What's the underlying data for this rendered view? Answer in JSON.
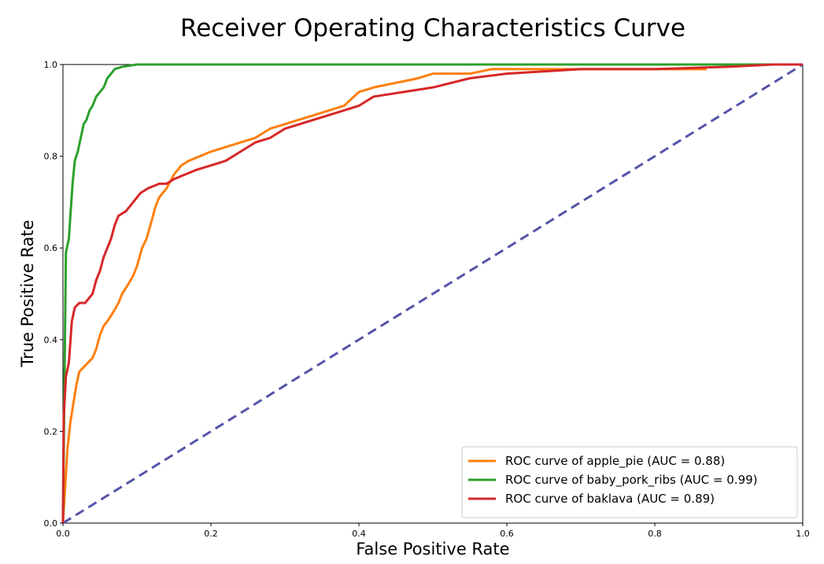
{
  "chart_data": {
    "type": "line",
    "title": "Receiver Operating Characteristics Curve",
    "xlabel": "False Positive Rate",
    "ylabel": "True Positive Rate",
    "xlim": [
      0.0,
      1.0
    ],
    "ylim": [
      0.0,
      1.0
    ],
    "xticks": [
      "0.0",
      "0.2",
      "0.4",
      "0.6",
      "0.8",
      "1.0"
    ],
    "yticks": [
      "0.0",
      "0.2",
      "0.4",
      "0.6",
      "0.8",
      "1.0"
    ],
    "grid": false,
    "legend_position": "lower-right",
    "series": [
      {
        "name": "ROC curve of apple_pie (AUC = 0.88)",
        "color": "#ff7f0e",
        "points": [
          [
            0,
            0
          ],
          [
            0.003,
            0.08
          ],
          [
            0.006,
            0.16
          ],
          [
            0.01,
            0.22
          ],
          [
            0.014,
            0.26
          ],
          [
            0.018,
            0.3
          ],
          [
            0.022,
            0.33
          ],
          [
            0.028,
            0.34
          ],
          [
            0.034,
            0.35
          ],
          [
            0.04,
            0.36
          ],
          [
            0.045,
            0.38
          ],
          [
            0.05,
            0.41
          ],
          [
            0.055,
            0.43
          ],
          [
            0.06,
            0.44
          ],
          [
            0.068,
            0.46
          ],
          [
            0.075,
            0.48
          ],
          [
            0.08,
            0.5
          ],
          [
            0.088,
            0.52
          ],
          [
            0.095,
            0.54
          ],
          [
            0.1,
            0.56
          ],
          [
            0.107,
            0.6
          ],
          [
            0.113,
            0.62
          ],
          [
            0.12,
            0.66
          ],
          [
            0.125,
            0.69
          ],
          [
            0.13,
            0.71
          ],
          [
            0.14,
            0.73
          ],
          [
            0.15,
            0.76
          ],
          [
            0.16,
            0.78
          ],
          [
            0.17,
            0.79
          ],
          [
            0.185,
            0.8
          ],
          [
            0.2,
            0.81
          ],
          [
            0.22,
            0.82
          ],
          [
            0.24,
            0.83
          ],
          [
            0.26,
            0.84
          ],
          [
            0.28,
            0.86
          ],
          [
            0.3,
            0.87
          ],
          [
            0.32,
            0.88
          ],
          [
            0.34,
            0.89
          ],
          [
            0.36,
            0.9
          ],
          [
            0.38,
            0.91
          ],
          [
            0.4,
            0.94
          ],
          [
            0.42,
            0.95
          ],
          [
            0.45,
            0.96
          ],
          [
            0.48,
            0.97
          ],
          [
            0.5,
            0.98
          ],
          [
            0.55,
            0.98
          ],
          [
            0.58,
            0.99
          ],
          [
            0.65,
            0.99
          ],
          [
            0.75,
            0.99
          ],
          [
            0.87,
            0.99
          ]
        ]
      },
      {
        "name": "ROC curve of baby_pork_ribs (AUC = 0.99)",
        "color": "#2ca02c",
        "points": [
          [
            0,
            0
          ],
          [
            0.002,
            0.3
          ],
          [
            0.004,
            0.59
          ],
          [
            0.008,
            0.62
          ],
          [
            0.01,
            0.67
          ],
          [
            0.013,
            0.74
          ],
          [
            0.016,
            0.79
          ],
          [
            0.02,
            0.81
          ],
          [
            0.024,
            0.84
          ],
          [
            0.028,
            0.87
          ],
          [
            0.032,
            0.88
          ],
          [
            0.036,
            0.9
          ],
          [
            0.04,
            0.91
          ],
          [
            0.045,
            0.93
          ],
          [
            0.05,
            0.94
          ],
          [
            0.055,
            0.95
          ],
          [
            0.06,
            0.97
          ],
          [
            0.065,
            0.98
          ],
          [
            0.07,
            0.99
          ],
          [
            0.08,
            0.995
          ],
          [
            0.1,
            1.0
          ],
          [
            0.3,
            1.0
          ],
          [
            0.6,
            1.0
          ],
          [
            1.0,
            1.0
          ]
        ]
      },
      {
        "name": "ROC curve of baklava (AUC = 0.89)",
        "color": "#d62728",
        "points": [
          [
            0,
            0
          ],
          [
            0.001,
            0.23
          ],
          [
            0.004,
            0.32
          ],
          [
            0.008,
            0.35
          ],
          [
            0.012,
            0.44
          ],
          [
            0.016,
            0.47
          ],
          [
            0.022,
            0.48
          ],
          [
            0.03,
            0.48
          ],
          [
            0.035,
            0.49
          ],
          [
            0.04,
            0.5
          ],
          [
            0.045,
            0.53
          ],
          [
            0.05,
            0.55
          ],
          [
            0.055,
            0.58
          ],
          [
            0.06,
            0.6
          ],
          [
            0.065,
            0.62
          ],
          [
            0.07,
            0.65
          ],
          [
            0.075,
            0.67
          ],
          [
            0.085,
            0.68
          ],
          [
            0.095,
            0.7
          ],
          [
            0.105,
            0.72
          ],
          [
            0.115,
            0.73
          ],
          [
            0.13,
            0.74
          ],
          [
            0.14,
            0.74
          ],
          [
            0.15,
            0.75
          ],
          [
            0.165,
            0.76
          ],
          [
            0.18,
            0.77
          ],
          [
            0.2,
            0.78
          ],
          [
            0.22,
            0.79
          ],
          [
            0.24,
            0.81
          ],
          [
            0.26,
            0.83
          ],
          [
            0.28,
            0.84
          ],
          [
            0.3,
            0.86
          ],
          [
            0.32,
            0.87
          ],
          [
            0.34,
            0.88
          ],
          [
            0.36,
            0.89
          ],
          [
            0.38,
            0.9
          ],
          [
            0.4,
            0.91
          ],
          [
            0.42,
            0.93
          ],
          [
            0.46,
            0.94
          ],
          [
            0.5,
            0.95
          ],
          [
            0.55,
            0.97
          ],
          [
            0.6,
            0.98
          ],
          [
            0.7,
            0.99
          ],
          [
            0.8,
            0.99
          ],
          [
            0.9,
            0.995
          ],
          [
            0.96,
            1.0
          ],
          [
            1.0,
            1.0
          ]
        ]
      },
      {
        "name": "",
        "color": "#5555aa",
        "dashed": true,
        "points": [
          [
            0,
            0
          ],
          [
            1,
            1
          ]
        ]
      }
    ]
  }
}
